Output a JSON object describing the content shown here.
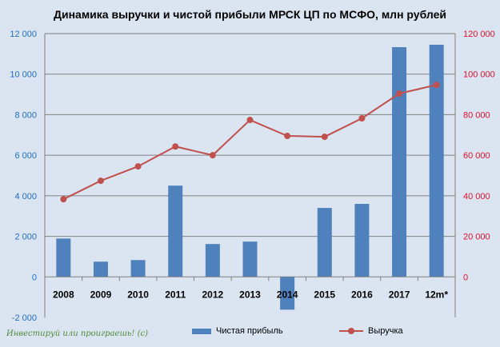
{
  "chart_data": {
    "type": "bar+line",
    "title": "Динамика выручки и чистой прибыли МРСК ЦП по МСФО, млн рублей",
    "categories": [
      "2008",
      "2009",
      "2010",
      "2011",
      "2012",
      "2013",
      "2014",
      "2015",
      "2016",
      "2017",
      "12m*"
    ],
    "series": [
      {
        "name": "Чистая прибыль",
        "type": "bar",
        "axis": "left",
        "color": "#4f81bd",
        "values": [
          1890,
          750,
          830,
          4500,
          1620,
          1740,
          -1620,
          3400,
          3600,
          11330,
          11450
        ]
      },
      {
        "name": "Выручка",
        "type": "line",
        "axis": "right",
        "color": "#c0504d",
        "values": [
          38300,
          47400,
          54500,
          64300,
          60000,
          77400,
          69500,
          69100,
          78200,
          90400,
          94700
        ]
      }
    ],
    "left_axis": {
      "range": [
        -2000,
        12000
      ],
      "ticks": [
        "-2 000",
        "0",
        "2 000",
        "4 000",
        "6 000",
        "8 000",
        "10 000",
        "12 000"
      ],
      "tick_values": [
        -2000,
        0,
        2000,
        4000,
        6000,
        8000,
        10000,
        12000
      ],
      "color": "#1f6fbf"
    },
    "right_axis": {
      "range": [
        -20000,
        120000
      ],
      "ticks": [
        "0",
        "20 000",
        "40 000",
        "60 000",
        "80 000",
        "100 000",
        "120 000"
      ],
      "tick_values": [
        0,
        20000,
        40000,
        60000,
        80000,
        100000,
        120000
      ],
      "color": "#e0102e"
    },
    "grid": true,
    "legend": "bottom"
  },
  "watermark": "Инвестируй или проиграешь! (с)"
}
